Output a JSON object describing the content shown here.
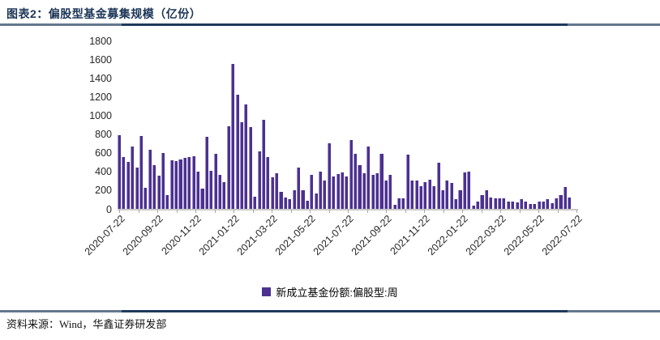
{
  "header": {
    "title": "图表2：偏股型基金募集规模（亿份）"
  },
  "footer": {
    "source": "资料来源：Wind，华鑫证券研发部"
  },
  "legend": {
    "label": "新成立基金份额:偏股型:周",
    "swatch_color": "#4C3190"
  },
  "colors": {
    "bar": "#4C3190",
    "bar_edge": "#9e90c9",
    "rule_navy": "#203a5c",
    "rule_light": "#64778f",
    "axis_line": "#c9c9c9",
    "axis_text": "#262626"
  },
  "chart_data": {
    "type": "bar",
    "title": "偏股型基金募集规模（亿份）",
    "xlabel": "",
    "ylabel": "",
    "ylim": [
      0,
      1800
    ],
    "y_ticks": [
      0,
      200,
      400,
      600,
      800,
      1000,
      1200,
      1400,
      1600,
      1800
    ],
    "grid": false,
    "legend_position": "bottom",
    "x_tick_labels": [
      "2020-07-22",
      "2020-09-22",
      "2020-11-22",
      "2021-01-22",
      "2021-03-22",
      "2021-05-22",
      "2021-07-22",
      "2021-09-22",
      "2021-11-22",
      "2022-01-22",
      "2022-03-22",
      "2022-05-22",
      "2022-07-22"
    ],
    "x_minor_ticks_per_label_gap": 2,
    "series": [
      {
        "name": "新成立基金份额:偏股型:周",
        "values": [
          790,
          550,
          500,
          670,
          440,
          780,
          225,
          635,
          470,
          355,
          600,
          150,
          520,
          510,
          525,
          545,
          550,
          560,
          395,
          220,
          770,
          410,
          590,
          365,
          290,
          880,
          1545,
          1220,
          925,
          1120,
          870,
          130,
          615,
          955,
          550,
          340,
          385,
          180,
          125,
          100,
          195,
          445,
          195,
          90,
          360,
          165,
          400,
          300,
          700,
          350,
          370,
          390,
          345,
          735,
          590,
          470,
          380,
          670,
          365,
          385,
          585,
          300,
          360,
          40,
          115,
          115,
          580,
          300,
          300,
          245,
          290,
          315,
          240,
          490,
          200,
          300,
          280,
          100,
          200,
          390,
          400,
          35,
          80,
          150,
          200,
          125,
          115,
          115,
          110,
          80,
          75,
          70,
          100,
          75,
          50,
          55,
          75,
          80,
          100,
          65,
          110,
          145,
          230,
          120
        ]
      }
    ]
  }
}
